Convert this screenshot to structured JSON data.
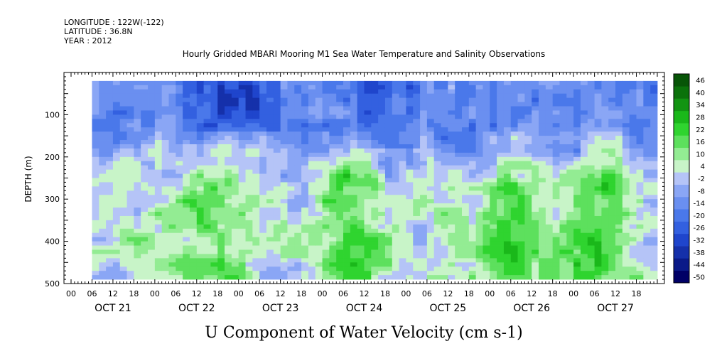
{
  "header": {
    "longitude": "LONGITUDE : 122W(-122)",
    "latitude": "LATITUDE : 36.8N",
    "year": "YEAR : 2012"
  },
  "chart_data": {
    "type": "heatmap",
    "title": "Hourly Gridded MBARI Mooring M1 Sea Water Temperature and Salinity Observations",
    "xlabel": "U Component of Water Velocity (cm s-1)",
    "ylabel": "DEPTH (m)",
    "ylim": [
      500,
      0
    ],
    "y_inverted": true,
    "y_ticks": [
      100,
      200,
      300,
      400,
      500
    ],
    "x_hours": [
      "00",
      "06",
      "12",
      "18"
    ],
    "x_days": [
      "OCT 21",
      "OCT 22",
      "OCT 23",
      "OCT 24",
      "OCT 25",
      "OCT 26",
      "OCT 27"
    ],
    "data_extent": {
      "start": "OCT 21 06:00",
      "end": "OCT 27 23:00",
      "depth_top": 20,
      "depth_bottom": 490
    },
    "colorbar": {
      "levels": [
        -50,
        -44,
        -38,
        -32,
        -26,
        -20,
        -14,
        -8,
        -2,
        4,
        10,
        16,
        22,
        28,
        34,
        40,
        46
      ],
      "labels": [
        "46",
        "40",
        "34",
        "28",
        "22",
        "16",
        "10",
        "4",
        "-2",
        "-8",
        "-14",
        "-20",
        "-26",
        "-32",
        "-38",
        "-44",
        "-50"
      ],
      "colors_low_to_high": [
        "#000066",
        "#0a1a88",
        "#1530aa",
        "#1f45cc",
        "#3360e0",
        "#4a78ea",
        "#6a8ff0",
        "#8aa6f5",
        "#b5c4f7",
        "#c8f4c8",
        "#93ec93",
        "#5de05d",
        "#2fd42f",
        "#1ab81a",
        "#129412",
        "#0b720b",
        "#075507"
      ]
    },
    "description_values": {
      "surface_layer_0_150m": "mostly negative (-2 to -26), strongest near OCT 22-23 and OCT 24",
      "deep_layer_200_480m": "mostly positive (4 to 28), strongest OCT 23, OCT 25 and OCT 26-27"
    }
  }
}
